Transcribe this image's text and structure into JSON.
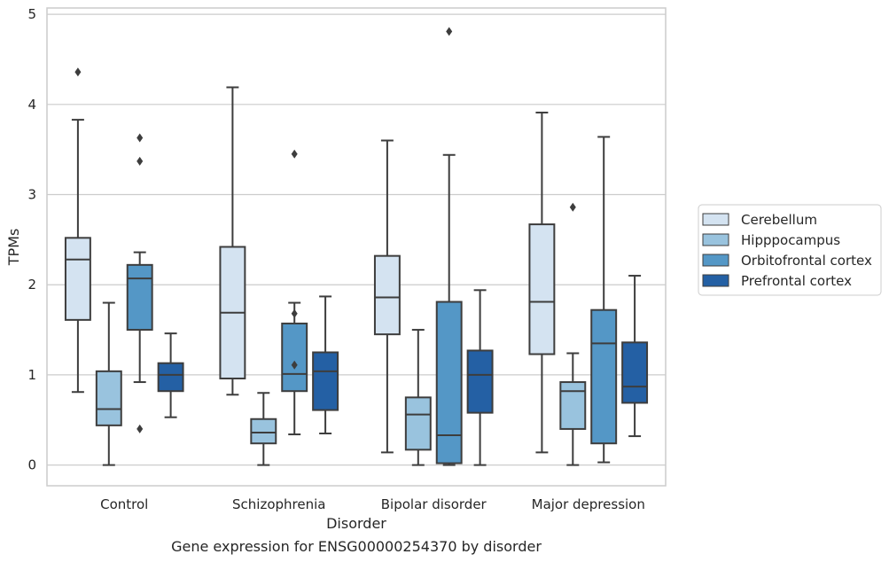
{
  "chart_data": {
    "type": "boxplot",
    "caption": "Gene expression for ENSG00000254370 by disorder",
    "xlabel": "Disorder",
    "ylabel": "TPMs",
    "ylim": [
      -0.23,
      5.07
    ],
    "yticks": [
      0,
      1,
      2,
      3,
      4,
      5
    ],
    "grid": "horizontal",
    "legend_position": "right",
    "categories": [
      "Control",
      "Schizophrenia",
      "Bipolar disorder",
      "Major depression"
    ],
    "series": [
      {
        "name": "Cerebellum",
        "color": "#d4e3f1",
        "boxes": [
          {
            "whislo": 0.81,
            "q1": 1.61,
            "med": 2.28,
            "q3": 2.52,
            "whishi": 3.83,
            "fliers": [
              4.36
            ]
          },
          {
            "whislo": 0.78,
            "q1": 0.96,
            "med": 1.69,
            "q3": 2.42,
            "whishi": 4.19,
            "fliers": []
          },
          {
            "whislo": 0.14,
            "q1": 1.45,
            "med": 1.86,
            "q3": 2.32,
            "whishi": 3.6,
            "fliers": []
          },
          {
            "whislo": 0.14,
            "q1": 1.23,
            "med": 1.81,
            "q3": 2.67,
            "whishi": 3.91,
            "fliers": []
          }
        ]
      },
      {
        "name": "Hipppocampus",
        "color": "#99c3de",
        "boxes": [
          {
            "whislo": 0.0,
            "q1": 0.44,
            "med": 0.62,
            "q3": 1.04,
            "whishi": 1.8,
            "fliers": []
          },
          {
            "whislo": 0.0,
            "q1": 0.24,
            "med": 0.36,
            "q3": 0.51,
            "whishi": 0.8,
            "fliers": []
          },
          {
            "whislo": 0.0,
            "q1": 0.17,
            "med": 0.56,
            "q3": 0.75,
            "whishi": 1.5,
            "fliers": []
          },
          {
            "whislo": 0.0,
            "q1": 0.4,
            "med": 0.82,
            "q3": 0.92,
            "whishi": 1.24,
            "fliers": [
              2.86
            ]
          }
        ]
      },
      {
        "name": "Orbitofrontal cortex",
        "color": "#5497c6",
        "boxes": [
          {
            "whislo": 0.92,
            "q1": 1.5,
            "med": 2.07,
            "q3": 2.22,
            "whishi": 2.36,
            "fliers": [
              3.63,
              3.37,
              0.4
            ]
          },
          {
            "whislo": 0.34,
            "q1": 0.82,
            "med": 1.01,
            "q3": 1.57,
            "whishi": 1.8,
            "fliers": [
              1.68,
              1.11,
              3.45
            ]
          },
          {
            "whislo": 0.0,
            "q1": 0.02,
            "med": 0.33,
            "q3": 1.81,
            "whishi": 3.44,
            "fliers": [
              4.81
            ]
          },
          {
            "whislo": 0.03,
            "q1": 0.24,
            "med": 1.35,
            "q3": 1.72,
            "whishi": 3.64,
            "fliers": []
          }
        ]
      },
      {
        "name": "Prefrontal cortex",
        "color": "#2460a4",
        "boxes": [
          {
            "whislo": 0.53,
            "q1": 0.82,
            "med": 1.0,
            "q3": 1.13,
            "whishi": 1.46,
            "fliers": []
          },
          {
            "whislo": 0.35,
            "q1": 0.61,
            "med": 1.04,
            "q3": 1.25,
            "whishi": 1.87,
            "fliers": []
          },
          {
            "whislo": 0.0,
            "q1": 0.58,
            "med": 1.0,
            "q3": 1.27,
            "whishi": 1.94,
            "fliers": []
          },
          {
            "whislo": 0.32,
            "q1": 0.69,
            "med": 0.87,
            "q3": 1.36,
            "whishi": 2.1,
            "fliers": []
          }
        ]
      }
    ]
  }
}
